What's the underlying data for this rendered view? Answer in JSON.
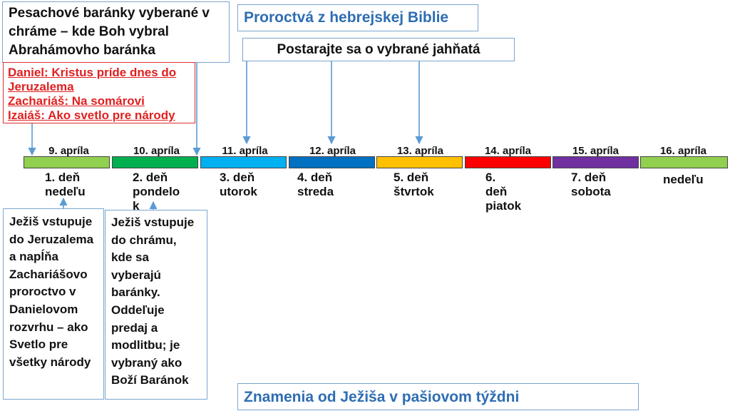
{
  "title": "Proroctvá z hebrejskej Biblie",
  "subtitle_bottom": "Znamenia od Ježiša v pašiovom týždni",
  "pesach_box": [
    "Pesachové baránky vyberané v",
    "chráme – kde Boh vybral",
    "Abrahámovho baránka"
  ],
  "postarajte": "Postarajte sa o vybrané jahňatá",
  "prophecies": [
    "Daniel: Kristus príde dnes do",
    "Jeruzalema",
    "Zachariáš: Na somárovi",
    "Izaiáš: Ako svetlo pre národy"
  ],
  "timeline": [
    {
      "date": "9. apríla",
      "day": [
        "1. deň",
        "nedeľu"
      ],
      "color": "#92d050"
    },
    {
      "date": "10. apríla",
      "day": [
        "2. deň",
        "pondelo",
        "k"
      ],
      "color": "#00b050"
    },
    {
      "date": "11. apríla",
      "day": [
        "3. deň",
        "utorok"
      ],
      "color": "#00b0f0"
    },
    {
      "date": "12. apríla",
      "day": [
        "4. deň",
        "streda"
      ],
      "color": "#0070c0"
    },
    {
      "date": "13. apríla",
      "day": [
        "5. deň",
        "štvrtok"
      ],
      "color": "#ffc000"
    },
    {
      "date": "14. apríla",
      "day": [
        "6.",
        "deň",
        "piatok"
      ],
      "color": "#ff0000"
    },
    {
      "date": "15. apríla",
      "day": [
        "7. deň",
        "sobota"
      ],
      "color": "#7030a0"
    },
    {
      "date": "16. apríla",
      "day": [
        "nedeľu"
      ],
      "color": "#92d050"
    }
  ],
  "monday_text": [
    "Ježiš vstupuje",
    "do Jeruzalema",
    "a napĺňa",
    "Zachariášovo",
    "proroctvo v",
    "Danielovom",
    "rozvrhu – ako",
    "Svetlo pre",
    "všetky národy"
  ],
  "tuesday_text": [
    "Ježiš vstupuje",
    "do chrámu,",
    "kde sa",
    "vyberajú",
    "baránky.",
    "Oddeľuje",
    "predaj a",
    "modlitbu; je",
    "vybraný ako",
    "Boží Baránok"
  ],
  "colors": {
    "accent_blue": "#2e6db3",
    "arrow_blue": "#5b9bd5",
    "prophecy_red": "#e02020"
  }
}
